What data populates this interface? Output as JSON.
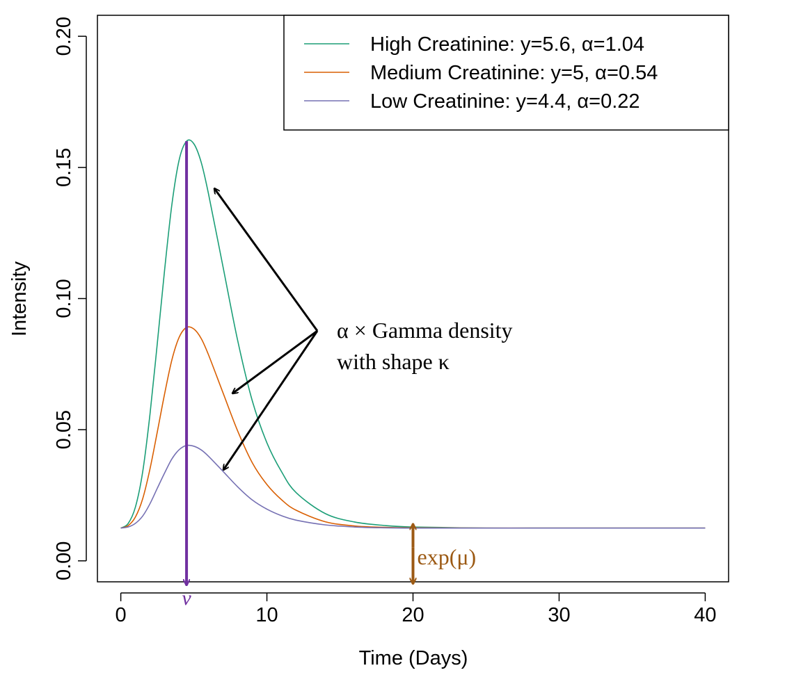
{
  "chart_data": {
    "type": "line",
    "title": "",
    "xlabel": "Time (Days)",
    "ylabel": "Intensity",
    "xlim": [
      -1.6,
      41.6
    ],
    "ylim": [
      -0.008,
      0.208
    ],
    "xticks": [
      0,
      10,
      20,
      30,
      40
    ],
    "xtick_labels": [
      "0",
      "10",
      "20",
      "30",
      "40"
    ],
    "yticks": [
      0.0,
      0.05,
      0.1,
      0.15,
      0.2
    ],
    "ytick_labels": [
      "0.00",
      "0.05",
      "0.10",
      "0.15",
      "0.20"
    ],
    "grid": false,
    "legend_position": "top-right",
    "baseline": 0.0125,
    "peak_day": 4.5,
    "series": [
      {
        "name": "High Creatinine: y=5.6, α=1.04",
        "color": "#1b9e77",
        "peak": 0.16,
        "x": [
          0,
          0.5,
          1,
          1.5,
          2,
          2.5,
          3,
          3.5,
          4,
          4.5,
          5,
          5.5,
          6,
          7,
          8,
          9,
          10,
          11,
          12,
          14,
          16,
          18,
          20,
          25,
          30,
          35,
          40
        ],
        "y": [
          0.0125,
          0.0142,
          0.0205,
          0.034,
          0.056,
          0.083,
          0.111,
          0.136,
          0.153,
          0.16,
          0.159,
          0.152,
          0.14,
          0.112,
          0.084,
          0.061,
          0.045,
          0.034,
          0.026,
          0.018,
          0.0148,
          0.0135,
          0.0129,
          0.0125,
          0.0125,
          0.0125,
          0.0125
        ]
      },
      {
        "name": "Medium Creatinine: y=5, α=0.54",
        "color": "#d95f02",
        "peak": 0.089,
        "x": [
          0,
          0.5,
          1,
          1.5,
          2,
          2.5,
          3,
          3.5,
          4,
          4.5,
          5,
          5.5,
          6,
          7,
          8,
          9,
          10,
          11,
          12,
          14,
          16,
          18,
          20,
          25,
          30,
          35,
          40
        ],
        "y": [
          0.0125,
          0.0134,
          0.0167,
          0.0237,
          0.0351,
          0.0492,
          0.0637,
          0.0767,
          0.0853,
          0.089,
          0.0884,
          0.0848,
          0.0786,
          0.064,
          0.0495,
          0.0374,
          0.0291,
          0.0233,
          0.0193,
          0.0149,
          0.0133,
          0.0128,
          0.0126,
          0.0125,
          0.0125,
          0.0125,
          0.0125
        ]
      },
      {
        "name": "Low Creatinine: y=4.4, α=0.22",
        "color": "#7570b3",
        "peak": 0.044,
        "x": [
          0,
          0.5,
          1,
          1.5,
          2,
          2.5,
          3,
          3.5,
          4,
          4.5,
          5,
          5.5,
          6,
          7,
          8,
          9,
          10,
          11,
          12,
          14,
          16,
          18,
          20,
          25,
          30,
          35,
          40
        ],
        "y": [
          0.0125,
          0.0129,
          0.0143,
          0.0171,
          0.0218,
          0.0277,
          0.0335,
          0.0389,
          0.0424,
          0.044,
          0.0437,
          0.0423,
          0.0399,
          0.0341,
          0.0282,
          0.0232,
          0.0197,
          0.0172,
          0.0155,
          0.0137,
          0.0129,
          0.0126,
          0.0125,
          0.0125,
          0.0125,
          0.0125,
          0.0125
        ]
      }
    ],
    "annotations": {
      "gamma_label_line1": "α × Gamma density",
      "gamma_label_line2": "with shape κ",
      "gamma_arrow_color": "#000000",
      "nu_label": "ν",
      "nu_color": "#7030a0",
      "mu_label": "exp(μ)",
      "mu_color": "#9c5a14",
      "mu_day": 20
    }
  }
}
